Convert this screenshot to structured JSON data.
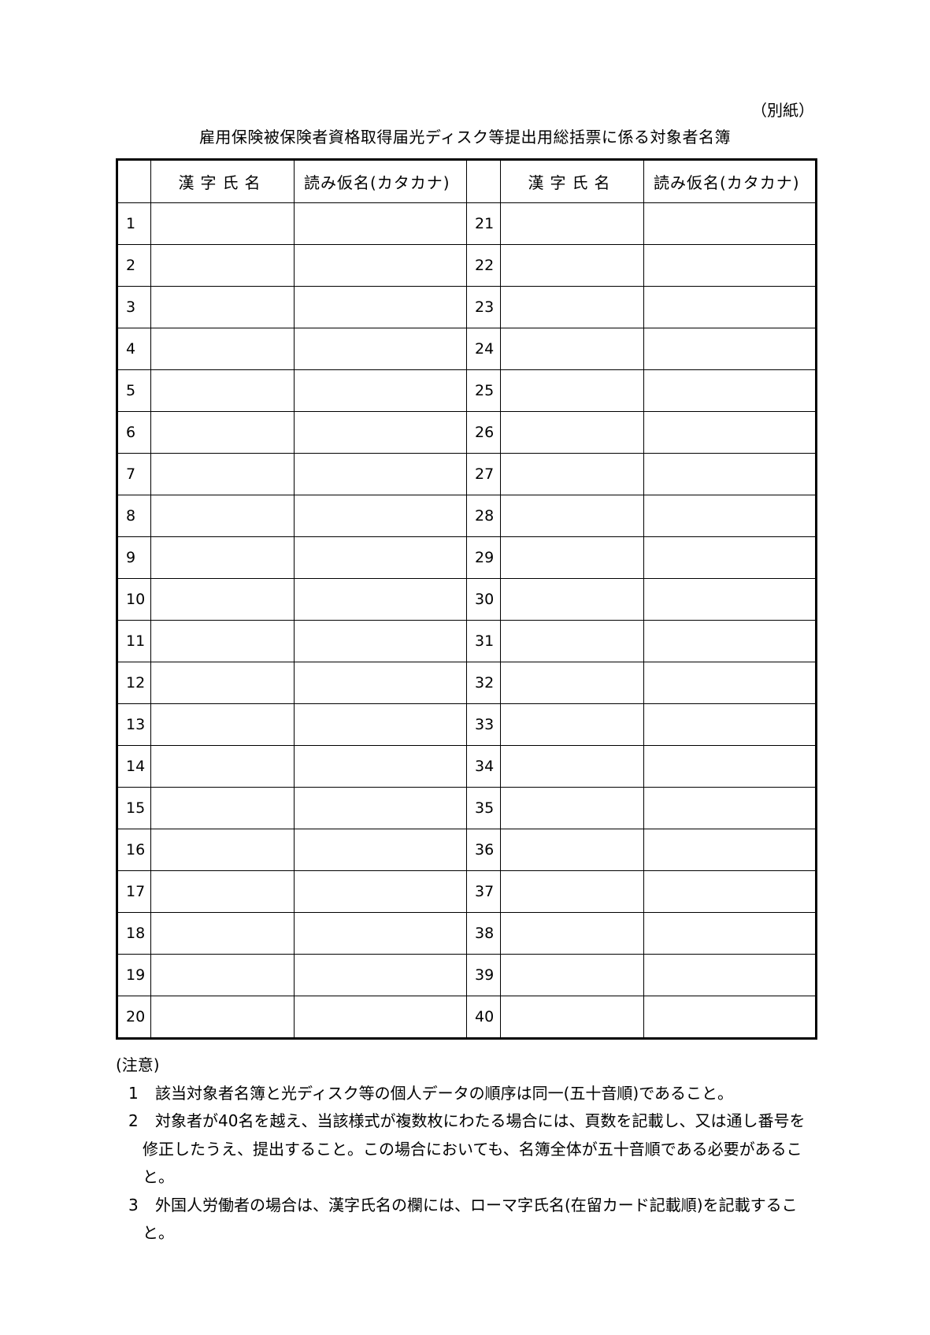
{
  "attachment_label": "（別紙）",
  "title": "雇用保険被保険者資格取得届光ディスク等提出用総括票に係る対象者名簿",
  "table": {
    "headers": {
      "no": "",
      "kanji_name": "漢字氏名",
      "kana_name": "読み仮名(カタカナ)"
    },
    "rows": [
      {
        "left_no": "1",
        "right_no": "21"
      },
      {
        "left_no": "2",
        "right_no": "22"
      },
      {
        "left_no": "3",
        "right_no": "23"
      },
      {
        "left_no": "4",
        "right_no": "24"
      },
      {
        "left_no": "5",
        "right_no": "25"
      },
      {
        "left_no": "6",
        "right_no": "26"
      },
      {
        "left_no": "7",
        "right_no": "27"
      },
      {
        "left_no": "8",
        "right_no": "28"
      },
      {
        "left_no": "9",
        "right_no": "29"
      },
      {
        "left_no": "10",
        "right_no": "30"
      },
      {
        "left_no": "11",
        "right_no": "31"
      },
      {
        "left_no": "12",
        "right_no": "32"
      },
      {
        "left_no": "13",
        "right_no": "33"
      },
      {
        "left_no": "14",
        "right_no": "34"
      },
      {
        "left_no": "15",
        "right_no": "35"
      },
      {
        "left_no": "16",
        "right_no": "36"
      },
      {
        "left_no": "17",
        "right_no": "37"
      },
      {
        "left_no": "18",
        "right_no": "38"
      },
      {
        "left_no": "19",
        "right_no": "39"
      },
      {
        "left_no": "20",
        "right_no": "40"
      }
    ]
  },
  "notes": {
    "heading": "(注意)",
    "items": [
      {
        "num": "1",
        "text": "該当対象者名簿と光ディスク等の個人データの順序は同一(五十音順)であること。"
      },
      {
        "num": "2",
        "text": "対象者が40名を越え、当該様式が複数枚にわたる場合には、頁数を記載し、又は通し番号を修正したうえ、提出すること。この場合においても、名簿全体が五十音順である必要があること。"
      },
      {
        "num": "3",
        "text": "外国人労働者の場合は、漢字氏名の欄には、ローマ字氏名(在留カード記載順)を記載すること。"
      }
    ]
  }
}
